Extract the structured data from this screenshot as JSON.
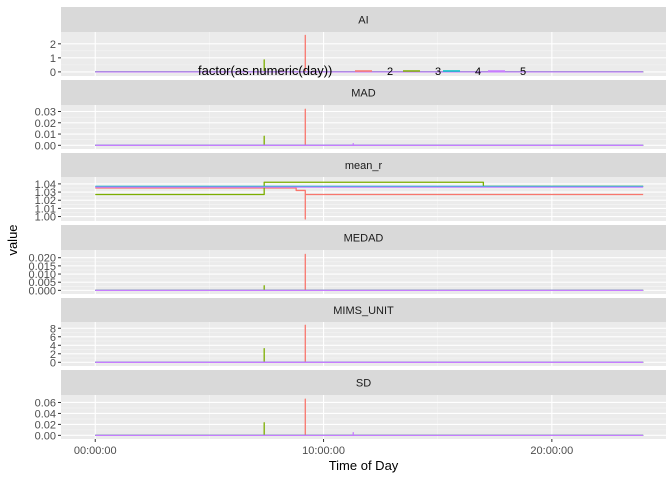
{
  "chart_data": {
    "type": "line",
    "xlabel": "Time of Day",
    "ylabel": "value",
    "x_unit": "hours",
    "xlim": [
      -1.5,
      25.0
    ],
    "x_ticks": [
      {
        "value": 0,
        "label": "00:00:00"
      },
      {
        "value": 10,
        "label": "10:00:00"
      },
      {
        "value": 20,
        "label": "20:00:00"
      }
    ],
    "legend": {
      "title": "factor(as.numeric(day))",
      "placement": "top-inside",
      "entries": [
        {
          "label": "2",
          "color": "#F8766D"
        },
        {
          "label": "3",
          "color": "#7CAE00"
        },
        {
          "label": "4",
          "color": "#00BFC4"
        },
        {
          "label": "5",
          "color": "#C77CFF"
        }
      ]
    },
    "panels": [
      {
        "title": "AI",
        "ylim": [
          -0.15,
          2.7
        ],
        "y_ticks": [
          {
            "value": 0,
            "label": "0"
          },
          {
            "value": 1,
            "label": "1"
          },
          {
            "value": 2,
            "label": "2"
          }
        ],
        "series": [
          {
            "color": "#F8766D",
            "x": [
              0,
              9.2,
              9.2,
              9.2,
              24
            ],
            "y": [
              0,
              0,
              2.6,
              0,
              0
            ]
          },
          {
            "color": "#7CAE00",
            "x": [
              0,
              7.4,
              7.4,
              7.4,
              24
            ],
            "y": [
              0,
              0,
              0.85,
              0,
              0
            ]
          },
          {
            "color": "#00BFC4",
            "x": [
              0,
              24
            ],
            "y": [
              0,
              0
            ]
          },
          {
            "color": "#C77CFF",
            "x": [
              0,
              24
            ],
            "y": [
              0,
              0
            ]
          }
        ]
      },
      {
        "title": "MAD",
        "ylim": [
          -0.0015,
          0.034
        ],
        "y_ticks": [
          {
            "value": 0,
            "label": "0.00"
          },
          {
            "value": 0.01,
            "label": "0.01"
          },
          {
            "value": 0.02,
            "label": "0.02"
          },
          {
            "value": 0.03,
            "label": "0.03"
          }
        ],
        "series": [
          {
            "color": "#F8766D",
            "x": [
              0,
              9.2,
              9.2,
              9.2,
              24
            ],
            "y": [
              0,
              0,
              0.032,
              0,
              0
            ]
          },
          {
            "color": "#7CAE00",
            "x": [
              0,
              7.4,
              7.4,
              7.4,
              24
            ],
            "y": [
              0,
              0,
              0.008,
              0,
              0
            ]
          },
          {
            "color": "#00BFC4",
            "x": [
              0,
              24
            ],
            "y": [
              0,
              0
            ]
          },
          {
            "color": "#C77CFF",
            "x": [
              0,
              11.3,
              11.3,
              11.3,
              24
            ],
            "y": [
              0,
              0,
              0.0015,
              0,
              0
            ]
          }
        ]
      },
      {
        "title": "mean_r",
        "ylim": [
          0.997,
          1.046
        ],
        "y_ticks": [
          {
            "value": 1.0,
            "label": "1.00"
          },
          {
            "value": 1.01,
            "label": "1.01"
          },
          {
            "value": 1.02,
            "label": "1.02"
          },
          {
            "value": 1.03,
            "label": "1.03"
          },
          {
            "value": 1.04,
            "label": "1.04"
          }
        ],
        "series": [
          {
            "color": "#F8766D",
            "x": [
              0,
              8.8,
              8.8,
              9.2,
              9.2,
              9.2,
              24
            ],
            "y": [
              1.035,
              1.035,
              1.032,
              1.032,
              0.997,
              1.027,
              1.027
            ]
          },
          {
            "color": "#7CAE00",
            "x": [
              0,
              7.4,
              7.4,
              17.0,
              17.0,
              24
            ],
            "y": [
              1.027,
              1.027,
              1.042,
              1.042,
              1.037,
              1.037
            ]
          },
          {
            "color": "#00BFC4",
            "x": [
              0,
              24
            ],
            "y": [
              1.037,
              1.037
            ]
          },
          {
            "color": "#C77CFF",
            "x": [
              0,
              24
            ],
            "y": [
              1.036,
              1.036
            ]
          }
        ]
      },
      {
        "title": "MEDAD",
        "ylim": [
          -0.001,
          0.0235
        ],
        "y_ticks": [
          {
            "value": 0,
            "label": "0.000"
          },
          {
            "value": 0.005,
            "label": "0.005"
          },
          {
            "value": 0.01,
            "label": "0.010"
          },
          {
            "value": 0.015,
            "label": "0.015"
          },
          {
            "value": 0.02,
            "label": "0.020"
          }
        ],
        "series": [
          {
            "color": "#F8766D",
            "x": [
              0,
              9.2,
              9.2,
              9.2,
              24
            ],
            "y": [
              0,
              0,
              0.022,
              0,
              0
            ]
          },
          {
            "color": "#7CAE00",
            "x": [
              0,
              7.4,
              7.4,
              7.4,
              24
            ],
            "y": [
              0,
              0,
              0.0028,
              0,
              0
            ]
          },
          {
            "color": "#00BFC4",
            "x": [
              0,
              24
            ],
            "y": [
              0,
              0
            ]
          },
          {
            "color": "#C77CFF",
            "x": [
              0,
              24
            ],
            "y": [
              0,
              0
            ]
          }
        ]
      },
      {
        "title": "MIMS_UNIT",
        "ylim": [
          -0.4,
          9.0
        ],
        "y_ticks": [
          {
            "value": 0,
            "label": "0"
          },
          {
            "value": 2,
            "label": "2"
          },
          {
            "value": 4,
            "label": "4"
          },
          {
            "value": 6,
            "label": "6"
          },
          {
            "value": 8,
            "label": "8"
          }
        ],
        "series": [
          {
            "color": "#F8766D",
            "x": [
              0,
              9.2,
              9.2,
              9.2,
              24
            ],
            "y": [
              0,
              0,
              8.7,
              0,
              0
            ]
          },
          {
            "color": "#7CAE00",
            "x": [
              0,
              7.4,
              7.4,
              7.4,
              24
            ],
            "y": [
              0,
              0,
              3.2,
              0,
              0
            ]
          },
          {
            "color": "#00BFC4",
            "x": [
              0,
              24
            ],
            "y": [
              0,
              0
            ]
          },
          {
            "color": "#C77CFF",
            "x": [
              0,
              24
            ],
            "y": [
              0,
              0
            ]
          }
        ]
      },
      {
        "title": "SD",
        "ylim": [
          -0.003,
          0.07
        ],
        "y_ticks": [
          {
            "value": 0,
            "label": "0.00"
          },
          {
            "value": 0.02,
            "label": "0.02"
          },
          {
            "value": 0.04,
            "label": "0.04"
          },
          {
            "value": 0.06,
            "label": "0.06"
          }
        ],
        "series": [
          {
            "color": "#F8766D",
            "x": [
              0,
              9.2,
              9.2,
              9.2,
              24
            ],
            "y": [
              0,
              0,
              0.066,
              0,
              0
            ]
          },
          {
            "color": "#7CAE00",
            "x": [
              0,
              7.4,
              7.4,
              7.4,
              24
            ],
            "y": [
              0,
              0,
              0.023,
              0,
              0
            ]
          },
          {
            "color": "#00BFC4",
            "x": [
              0,
              24
            ],
            "y": [
              0,
              0
            ]
          },
          {
            "color": "#C77CFF",
            "x": [
              0,
              11.3,
              11.3,
              11.3,
              24
            ],
            "y": [
              0,
              0,
              0.005,
              0,
              0
            ]
          }
        ]
      }
    ]
  }
}
